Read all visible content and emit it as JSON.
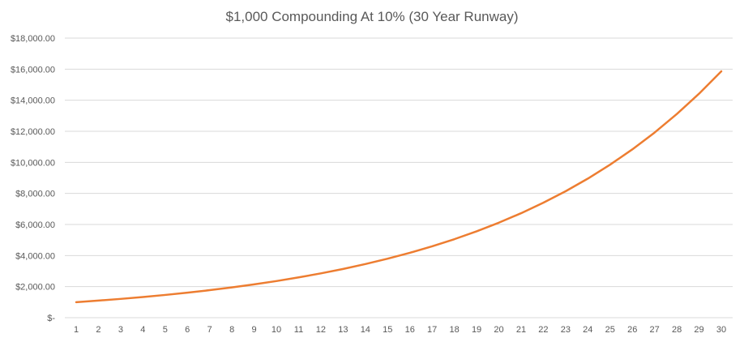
{
  "chart_data": {
    "type": "line",
    "title": "$1,000 Compounding At 10% (30 Year Runway)",
    "xlabel": "",
    "ylabel": "",
    "x": [
      1,
      2,
      3,
      4,
      5,
      6,
      7,
      8,
      9,
      10,
      11,
      12,
      13,
      14,
      15,
      16,
      17,
      18,
      19,
      20,
      21,
      22,
      23,
      24,
      25,
      26,
      27,
      28,
      29,
      30
    ],
    "y_tick_labels": [
      "$-",
      "$2,000.00",
      "$4,000.00",
      "$6,000.00",
      "$8,000.00",
      "$10,000.00",
      "$12,000.00",
      "$14,000.00",
      "$16,000.00",
      "$18,000.00"
    ],
    "y_tick_values": [
      0,
      2000,
      4000,
      6000,
      8000,
      10000,
      12000,
      14000,
      16000,
      18000
    ],
    "ylim": [
      0,
      18000
    ],
    "grid": true,
    "legend": "none",
    "series": [
      {
        "color": "#ED7D31",
        "values": [
          1000,
          1100,
          1210,
          1331,
          1464,
          1611,
          1772,
          1949,
          2144,
          2358,
          2594,
          2853,
          3138,
          3452,
          3797,
          4177,
          4595,
          5054,
          5560,
          6116,
          6727,
          7400,
          8140,
          8954,
          9850,
          10835,
          11918,
          13110,
          14421,
          15863
        ]
      }
    ],
    "colors": {
      "grid": "#D9D9D9",
      "tick_text": "#595959",
      "title_text": "#595959"
    }
  }
}
